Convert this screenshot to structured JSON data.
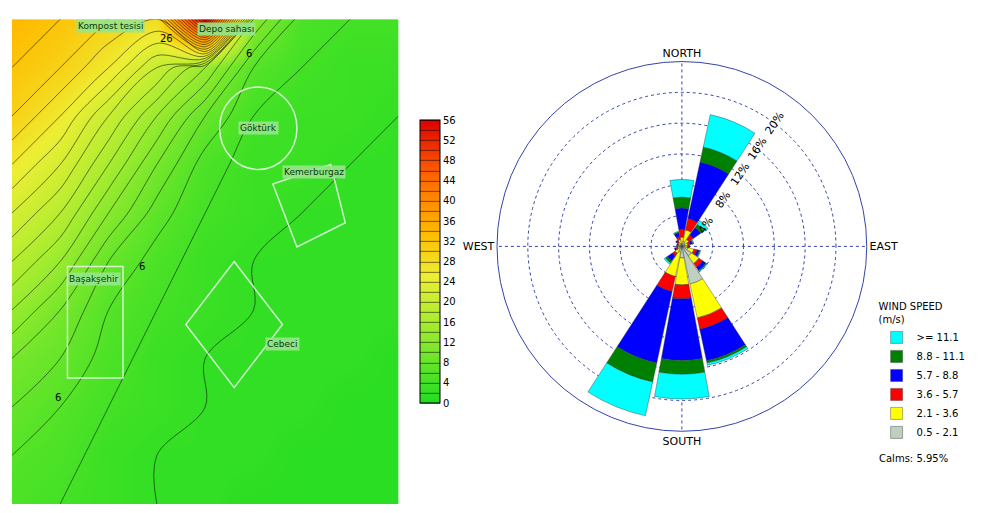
{
  "chart_data": [
    {
      "type": "contour",
      "tick_labels": false,
      "cells": [
        [
          5,
          4,
          3,
          2,
          2,
          1,
          1,
          1,
          1
        ],
        [
          6,
          5,
          3,
          2,
          2,
          2,
          1,
          1,
          1
        ],
        [
          8,
          6,
          4,
          3,
          2,
          2,
          2,
          1,
          1
        ],
        [
          10,
          8,
          5,
          3,
          2,
          2,
          2,
          2,
          1
        ],
        [
          14,
          10,
          6,
          4,
          3,
          2,
          2,
          2,
          2
        ],
        [
          18,
          14,
          8,
          5,
          3,
          2,
          2,
          2,
          2
        ],
        [
          22,
          18,
          12,
          7,
          4,
          3,
          2,
          2,
          2
        ],
        [
          26,
          22,
          16,
          10,
          5,
          3,
          3,
          2,
          2
        ],
        [
          30,
          26,
          20,
          14,
          8,
          4,
          3,
          3,
          2
        ],
        [
          32,
          30,
          26,
          20,
          14,
          6,
          4,
          3,
          3
        ],
        [
          34,
          32,
          30,
          28,
          56,
          12,
          5,
          4,
          4
        ]
      ],
      "contour_interval": 2,
      "colorbar_range": [
        0,
        56
      ],
      "colorbar_ticks": [
        0,
        4,
        8,
        12,
        16,
        20,
        24,
        28,
        32,
        36,
        40,
        44,
        48,
        52,
        56
      ],
      "contour_labels": [
        26,
        6,
        6,
        6
      ],
      "annotations": [
        "Kompost tesisi",
        "Depo sahası",
        "Göktürk",
        "Kemerburgaz",
        "Başakşehir",
        "Cebeci"
      ]
    },
    {
      "type": "barpolar",
      "categories": [
        "NORTH",
        null,
        null,
        null,
        "EAST",
        null,
        null,
        null,
        "SOUTH",
        null,
        null,
        null,
        "WEST",
        null,
        null,
        null
      ],
      "series": [
        {
          "name": "0.5 - 2.1",
          "color": "#bfd0bf",
          "values": [
            0.4,
            0.7,
            0.5,
            0.4,
            0.4,
            0.8,
            1.5,
            5.0,
            1.5,
            0.8,
            0.5,
            0.3,
            0.3,
            0.3,
            0.3,
            0.4
          ]
        },
        {
          "name": "2.1 - 3.6",
          "color": "#ffff00",
          "values": [
            0.8,
            1.5,
            0.6,
            0.4,
            0.3,
            0.8,
            1.2,
            4.5,
            3.5,
            3.2,
            0.6,
            0.3,
            0.2,
            0.2,
            0.3,
            0.5
          ]
        },
        {
          "name": "3.6 - 5.7",
          "color": "#ff0000",
          "values": [
            1.0,
            1.5,
            0.7,
            0.3,
            0.2,
            0.4,
            0.6,
            1.5,
            1.8,
            2.0,
            0.4,
            0.2,
            0.1,
            0.1,
            0.2,
            0.4
          ]
        },
        {
          "name": "5.7 - 8.8",
          "color": "#0000ff",
          "values": [
            2.8,
            7.5,
            1.2,
            0.3,
            0.1,
            0.3,
            0.5,
            4.2,
            8.0,
            9.5,
            0.8,
            0.2,
            0.1,
            0.1,
            0.2,
            0.5
          ]
        },
        {
          "name": "8.8 - 11.1",
          "color": "#008000",
          "values": [
            1.4,
            2.0,
            0.5,
            0.1,
            0,
            0.1,
            0.1,
            0.3,
            1.8,
            2.5,
            0.3,
            0,
            0,
            0,
            0,
            0.1
          ]
        },
        {
          "name": ">= 11.1",
          "color": "#00ffff",
          "values": [
            2.3,
            4.3,
            0.6,
            0.1,
            0,
            0.1,
            0.1,
            0.3,
            3.2,
            4.5,
            0.2,
            0,
            0,
            0,
            0,
            0.1
          ]
        }
      ],
      "ylim": [
        0,
        24
      ],
      "yticks": [
        {
          "value": 4,
          "label": "4%"
        },
        {
          "value": 8,
          "label": "8%"
        },
        {
          "value": 12,
          "label": "12%"
        },
        {
          "value": 16,
          "label": "16%"
        },
        {
          "value": 20,
          "label": "20%"
        }
      ],
      "grid": true,
      "stacked": true,
      "legend": "lower right",
      "legend_title": [
        "WIND SPEED",
        "(m/s)"
      ],
      "annotations": [
        "Calms: 5.95%"
      ]
    }
  ]
}
